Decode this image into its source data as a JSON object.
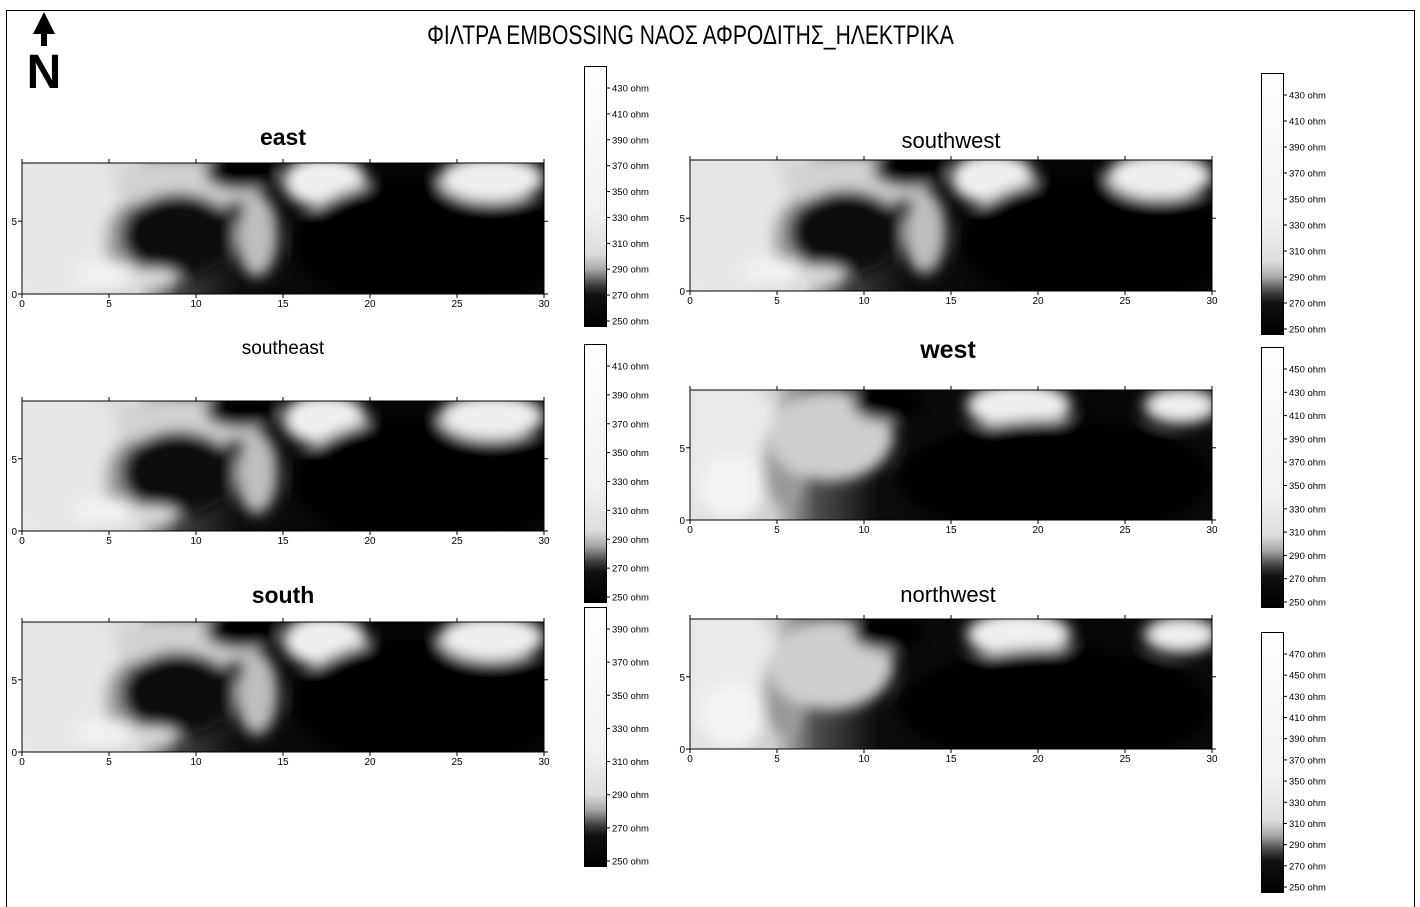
{
  "title": "ΦΙΛΤΡΑ  EMBOSSING ΝΑΟΣ ΑΦΡΟΔΙΤΗΣ_ΗΛΕΚΤΡΙΚΑ",
  "north_label": "N",
  "chart_data": [
    {
      "type": "heatmap",
      "title": "east",
      "xlim": [
        0,
        30
      ],
      "ylim": [
        0,
        9
      ],
      "x_ticks": [
        "0",
        "5",
        "10",
        "15",
        "20",
        "25",
        "30"
      ],
      "y_ticks": [
        "0",
        "5"
      ],
      "colorbar": [
        "430 ohm",
        "410 ohm",
        "390 ohm",
        "370 ohm",
        "350 ohm",
        "330 ohm",
        "310 ohm",
        "290 ohm",
        "270 ohm",
        "250 ohm"
      ]
    },
    {
      "type": "heatmap",
      "title": "southeast",
      "xlim": [
        0,
        30
      ],
      "ylim": [
        0,
        9
      ],
      "x_ticks": [
        "0",
        "5",
        "10",
        "15",
        "20",
        "25",
        "30"
      ],
      "y_ticks": [
        "0",
        "5"
      ],
      "colorbar": [
        "410 ohm",
        "390 ohm",
        "370 ohm",
        "350 ohm",
        "330 ohm",
        "310 ohm",
        "290 ohm",
        "270 ohm",
        "250 ohm"
      ]
    },
    {
      "type": "heatmap",
      "title": "south",
      "xlim": [
        0,
        30
      ],
      "ylim": [
        0,
        9
      ],
      "x_ticks": [
        "0",
        "5",
        "10",
        "15",
        "20",
        "25",
        "30"
      ],
      "y_ticks": [
        "0",
        "5"
      ],
      "colorbar": [
        "390 ohm",
        "370 ohm",
        "350 ohm",
        "330 ohm",
        "310 ohm",
        "290 ohm",
        "270 ohm",
        "250 ohm"
      ]
    },
    {
      "type": "heatmap",
      "title": "southwest",
      "xlim": [
        0,
        30
      ],
      "ylim": [
        0,
        9
      ],
      "x_ticks": [
        "0",
        "5",
        "10",
        "15",
        "20",
        "25",
        "30"
      ],
      "y_ticks": [
        "0",
        "5"
      ],
      "colorbar": [
        "430 ohm",
        "410 ohm",
        "390 ohm",
        "370 ohm",
        "350 ohm",
        "330 ohm",
        "310 ohm",
        "290 ohm",
        "270 ohm",
        "250 ohm"
      ]
    },
    {
      "type": "heatmap",
      "title": "west",
      "xlim": [
        0,
        30
      ],
      "ylim": [
        0,
        9
      ],
      "x_ticks": [
        "0",
        "5",
        "10",
        "15",
        "20",
        "25",
        "30"
      ],
      "y_ticks": [
        "0",
        "5"
      ],
      "colorbar": [
        "450 ohm",
        "430 ohm",
        "410 ohm",
        "390 ohm",
        "370 ohm",
        "350 ohm",
        "330 ohm",
        "310 ohm",
        "290 ohm",
        "270 ohm",
        "250 ohm"
      ]
    },
    {
      "type": "heatmap",
      "title": "northwest",
      "xlim": [
        0,
        30
      ],
      "ylim": [
        0,
        9
      ],
      "x_ticks": [
        "0",
        "5",
        "10",
        "15",
        "20",
        "25",
        "30"
      ],
      "y_ticks": [
        "0",
        "5"
      ],
      "colorbar": [
        "470 ohm",
        "450 ohm",
        "430 ohm",
        "410 ohm",
        "390 ohm",
        "370 ohm",
        "350 ohm",
        "330 ohm",
        "310 ohm",
        "290 ohm",
        "270 ohm",
        "250 ohm"
      ]
    }
  ]
}
